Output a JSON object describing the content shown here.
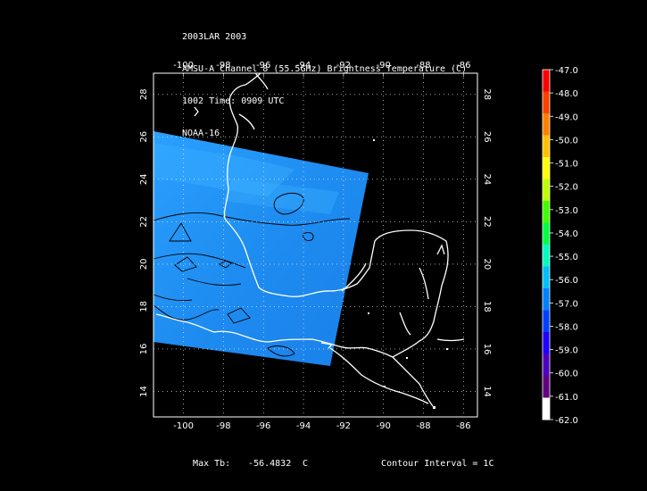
{
  "title": {
    "line1": "2003LAR 2003",
    "line2": "AMSU-A Channel 8 (55.5GHz) Brightness Temperature (C)",
    "line3": "1002 Time: 0909 UTC",
    "line4": "NOAA-16"
  },
  "map": {
    "lon_ticks": [
      "-100",
      "-98",
      "-96",
      "-94",
      "-92",
      "-90",
      "-88",
      "-86"
    ],
    "lat_ticks": [
      "28",
      "26",
      "24",
      "22",
      "20",
      "18",
      "16",
      "14"
    ],
    "lon_range": [
      -101.5,
      -85.3
    ],
    "lat_range": [
      12.8,
      29.0
    ],
    "swath_color": "#1e8cf0",
    "background_color": "#000000",
    "coast_color": "#ffffff"
  },
  "colorbar": {
    "labels": [
      "-47.0",
      "-48.0",
      "-49.0",
      "-50.0",
      "-51.0",
      "-52.0",
      "-53.0",
      "-54.0",
      "-55.0",
      "-56.0",
      "-57.0",
      "-58.0",
      "-59.0",
      "-60.0",
      "-61.0",
      "-62.0"
    ],
    "colors": [
      "#ff0000",
      "#ff4000",
      "#ff8000",
      "#ffbf00",
      "#ffff00",
      "#bfff00",
      "#40ff00",
      "#00ff40",
      "#00ffbf",
      "#00bfff",
      "#0080ff",
      "#0040ff",
      "#2000ff",
      "#5000c0",
      "#600080",
      "#ffffff"
    ]
  },
  "footer": {
    "max_label": "Max Tb:",
    "max_value": "-56.4832",
    "max_unit": "C",
    "contour_label": "Contour Interval = 1C"
  }
}
